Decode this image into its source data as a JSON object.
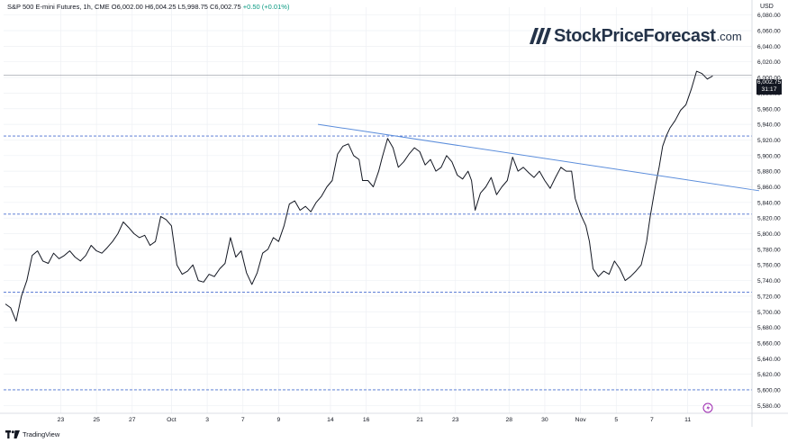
{
  "header": {
    "title": "S&P 500 E-mini Futures, 1h, CME",
    "ohlc": "O6,002.00 H6,004.25 L5,998.75 C6,002.75",
    "change": "+0.50 (+0.01%)"
  },
  "currency": "USD",
  "brand": {
    "name": "StockPriceForecast",
    "tld": ".com"
  },
  "footer": {
    "label": "TradingView"
  },
  "last_price": {
    "value": "6,002.75",
    "countdown": "31:17"
  },
  "colors": {
    "line": "#131722",
    "trend": "#5b8ddb",
    "levels": "#4a6fd0",
    "grid": "#eef0f4",
    "accent": "#9c27b0"
  },
  "chart_data": {
    "type": "line",
    "title": "S&P 500 E-mini Futures, 1h, CME",
    "xlabel": "",
    "ylabel": "",
    "ylim": [
      5570,
      6090
    ],
    "y_ticks": [
      "6,080.00",
      "6,060.00",
      "6,040.00",
      "6,020.00",
      "6,000.00",
      "5,980.00",
      "5,960.00",
      "5,940.00",
      "5,920.00",
      "5,900.00",
      "5,880.00",
      "5,860.00",
      "5,840.00",
      "5,820.00",
      "5,800.00",
      "5,780.00",
      "5,760.00",
      "5,740.00",
      "5,720.00",
      "5,700.00",
      "5,680.00",
      "5,660.00",
      "5,640.00",
      "5,620.00",
      "5,600.00",
      "5,580.00"
    ],
    "x_ticks": [
      {
        "label": "23",
        "t": 3.1
      },
      {
        "label": "25",
        "t": 5.1
      },
      {
        "label": "27",
        "t": 7.1
      },
      {
        "label": "Oct",
        "t": 9.3
      },
      {
        "label": "3",
        "t": 11.3
      },
      {
        "label": "7",
        "t": 13.3
      },
      {
        "label": "9",
        "t": 15.3
      },
      {
        "label": "14",
        "t": 18.2
      },
      {
        "label": "16",
        "t": 20.2
      },
      {
        "label": "21",
        "t": 23.2
      },
      {
        "label": "23",
        "t": 25.2
      },
      {
        "label": "28",
        "t": 28.2
      },
      {
        "label": "30",
        "t": 30.2
      },
      {
        "label": "Nov",
        "t": 32.2
      },
      {
        "label": "5",
        "t": 34.2
      },
      {
        "label": "7",
        "t": 36.2
      },
      {
        "label": "11",
        "t": 38.2
      }
    ],
    "series": [
      {
        "values": [
          [
            0,
            5710
          ],
          [
            0.3,
            5705
          ],
          [
            0.6,
            5688
          ],
          [
            0.9,
            5720
          ],
          [
            1.2,
            5740
          ],
          [
            1.5,
            5772
          ],
          [
            1.8,
            5778
          ],
          [
            2.1,
            5765
          ],
          [
            2.4,
            5762
          ],
          [
            2.7,
            5775
          ],
          [
            3.0,
            5768
          ],
          [
            3.3,
            5772
          ],
          [
            3.6,
            5778
          ],
          [
            3.9,
            5770
          ],
          [
            4.2,
            5765
          ],
          [
            4.5,
            5772
          ],
          [
            4.8,
            5785
          ],
          [
            5.1,
            5778
          ],
          [
            5.4,
            5775
          ],
          [
            5.7,
            5782
          ],
          [
            6.0,
            5790
          ],
          [
            6.3,
            5800
          ],
          [
            6.6,
            5815
          ],
          [
            6.9,
            5808
          ],
          [
            7.2,
            5800
          ],
          [
            7.5,
            5795
          ],
          [
            7.8,
            5798
          ],
          [
            8.1,
            5785
          ],
          [
            8.4,
            5790
          ],
          [
            8.7,
            5822
          ],
          [
            9.0,
            5818
          ],
          [
            9.3,
            5810
          ],
          [
            9.6,
            5760
          ],
          [
            9.9,
            5748
          ],
          [
            10.2,
            5752
          ],
          [
            10.5,
            5760
          ],
          [
            10.8,
            5740
          ],
          [
            11.1,
            5738
          ],
          [
            11.4,
            5748
          ],
          [
            11.7,
            5745
          ],
          [
            12.0,
            5755
          ],
          [
            12.3,
            5762
          ],
          [
            12.6,
            5795
          ],
          [
            12.9,
            5770
          ],
          [
            13.2,
            5778
          ],
          [
            13.5,
            5750
          ],
          [
            13.8,
            5735
          ],
          [
            14.1,
            5750
          ],
          [
            14.4,
            5775
          ],
          [
            14.7,
            5780
          ],
          [
            15.0,
            5795
          ],
          [
            15.3,
            5790
          ],
          [
            15.6,
            5810
          ],
          [
            15.9,
            5838
          ],
          [
            16.2,
            5842
          ],
          [
            16.5,
            5830
          ],
          [
            16.8,
            5835
          ],
          [
            17.1,
            5828
          ],
          [
            17.4,
            5840
          ],
          [
            17.7,
            5848
          ],
          [
            18.0,
            5860
          ],
          [
            18.3,
            5868
          ],
          [
            18.6,
            5902
          ],
          [
            18.9,
            5912
          ],
          [
            19.2,
            5915
          ],
          [
            19.5,
            5900
          ],
          [
            19.8,
            5895
          ],
          [
            20.0,
            5868
          ],
          [
            20.3,
            5868
          ],
          [
            20.6,
            5860
          ],
          [
            20.9,
            5880
          ],
          [
            21.1,
            5898
          ],
          [
            21.4,
            5922
          ],
          [
            21.7,
            5910
          ],
          [
            22.0,
            5885
          ],
          [
            22.3,
            5892
          ],
          [
            22.6,
            5902
          ],
          [
            22.9,
            5910
          ],
          [
            23.2,
            5905
          ],
          [
            23.5,
            5888
          ],
          [
            23.8,
            5895
          ],
          [
            24.1,
            5880
          ],
          [
            24.4,
            5885
          ],
          [
            24.7,
            5900
          ],
          [
            25.0,
            5892
          ],
          [
            25.3,
            5875
          ],
          [
            25.6,
            5870
          ],
          [
            25.9,
            5880
          ],
          [
            26.1,
            5868
          ],
          [
            26.3,
            5830
          ],
          [
            26.6,
            5852
          ],
          [
            26.9,
            5860
          ],
          [
            27.2,
            5872
          ],
          [
            27.5,
            5850
          ],
          [
            27.8,
            5860
          ],
          [
            28.1,
            5868
          ],
          [
            28.4,
            5898
          ],
          [
            28.7,
            5880
          ],
          [
            29.0,
            5885
          ],
          [
            29.3,
            5878
          ],
          [
            29.6,
            5872
          ],
          [
            29.9,
            5880
          ],
          [
            30.2,
            5868
          ],
          [
            30.5,
            5858
          ],
          [
            30.8,
            5872
          ],
          [
            31.1,
            5885
          ],
          [
            31.4,
            5880
          ],
          [
            31.7,
            5880
          ],
          [
            31.9,
            5845
          ],
          [
            32.2,
            5825
          ],
          [
            32.5,
            5810
          ],
          [
            32.7,
            5790
          ],
          [
            32.9,
            5755
          ],
          [
            33.2,
            5745
          ],
          [
            33.5,
            5752
          ],
          [
            33.8,
            5748
          ],
          [
            34.1,
            5765
          ],
          [
            34.4,
            5755
          ],
          [
            34.7,
            5740
          ],
          [
            35.0,
            5745
          ],
          [
            35.3,
            5752
          ],
          [
            35.6,
            5760
          ],
          [
            35.9,
            5790
          ],
          [
            36.1,
            5822
          ],
          [
            36.4,
            5862
          ],
          [
            36.6,
            5885
          ],
          [
            36.8,
            5912
          ],
          [
            37.0,
            5925
          ],
          [
            37.2,
            5935
          ],
          [
            37.5,
            5945
          ],
          [
            37.8,
            5958
          ],
          [
            38.1,
            5965
          ],
          [
            38.4,
            5985
          ],
          [
            38.7,
            6008
          ],
          [
            39.0,
            6005
          ],
          [
            39.3,
            5998
          ],
          [
            39.6,
            6002
          ]
        ]
      }
    ],
    "horizontal_levels": [
      5925,
      5825,
      5725,
      5600
    ],
    "trend_line": [
      [
        17.5,
        5940
      ],
      [
        42.2,
        5855
      ]
    ],
    "last_value": 6002.75,
    "grid": true
  }
}
